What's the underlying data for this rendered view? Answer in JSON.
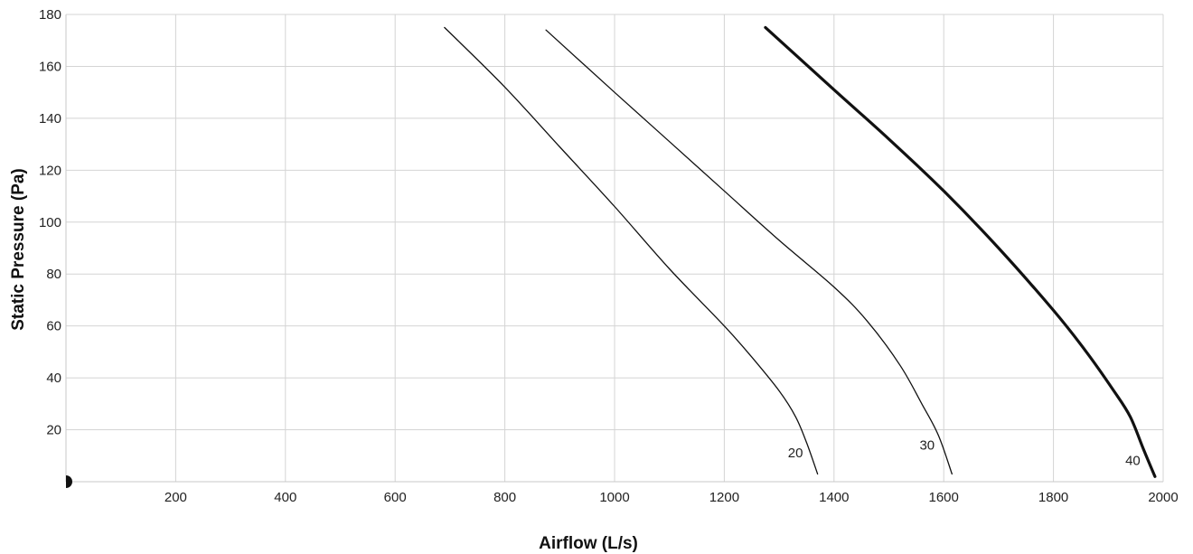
{
  "chart_data": {
    "type": "line",
    "xlabel": "Airflow (L/s)",
    "ylabel": "Static Pressure (Pa)",
    "xlim": [
      0,
      2000
    ],
    "ylim": [
      0,
      180
    ],
    "x_ticks": [
      200,
      400,
      600,
      800,
      1000,
      1200,
      1400,
      1600,
      1800,
      2000
    ],
    "y_ticks": [
      20,
      40,
      60,
      80,
      100,
      120,
      140,
      160,
      180
    ],
    "grid": true,
    "colors": {
      "grid": "#d4d4d4",
      "series": "#111111",
      "marker": "#111111"
    },
    "origin_marker": {
      "x": 0,
      "y": 0
    },
    "series": [
      {
        "name": "20",
        "x": [
          690,
          800,
          900,
          1000,
          1100,
          1200,
          1250,
          1300,
          1330,
          1350,
          1370
        ],
        "y": [
          175,
          152,
          129,
          106,
          82,
          60,
          48,
          35,
          25,
          15,
          3
        ],
        "width": "thin"
      },
      {
        "name": "30",
        "x": [
          875,
          1000,
          1100,
          1200,
          1300,
          1400,
          1460,
          1520,
          1560,
          1590,
          1615
        ],
        "y": [
          174,
          150,
          131,
          112,
          93,
          75,
          62,
          45,
          30,
          18,
          3
        ],
        "width": "thin"
      },
      {
        "name": "40",
        "x": [
          1275,
          1400,
          1500,
          1600,
          1700,
          1800,
          1860,
          1910,
          1940,
          1965,
          1985
        ],
        "y": [
          175,
          151,
          132,
          112,
          90,
          66,
          50,
          35,
          25,
          12,
          2
        ],
        "width": "thick"
      }
    ]
  }
}
